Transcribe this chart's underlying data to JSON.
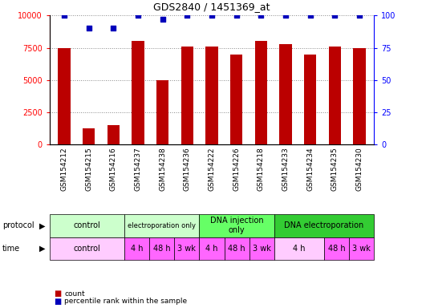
{
  "title": "GDS2840 / 1451369_at",
  "samples": [
    "GSM154212",
    "GSM154215",
    "GSM154216",
    "GSM154237",
    "GSM154238",
    "GSM154236",
    "GSM154222",
    "GSM154226",
    "GSM154218",
    "GSM154233",
    "GSM154234",
    "GSM154235",
    "GSM154230"
  ],
  "bar_values": [
    7500,
    1300,
    1500,
    8000,
    5000,
    7600,
    7600,
    7000,
    8000,
    7800,
    7000,
    7600,
    7500
  ],
  "percentile_values": [
    100,
    90,
    90,
    100,
    97,
    100,
    100,
    100,
    100,
    100,
    100,
    100,
    100
  ],
  "bar_color": "#bb0000",
  "dot_color": "#0000bb",
  "ylim_left": [
    0,
    10000
  ],
  "ylim_right": [
    0,
    100
  ],
  "yticks_left": [
    0,
    2500,
    5000,
    7500,
    10000
  ],
  "yticks_right": [
    0,
    25,
    50,
    75,
    100
  ],
  "grid_color": "#888888",
  "protocol_data": [
    {
      "label": "control",
      "span": [
        0,
        3
      ],
      "color": "#ccffcc",
      "fontsize": 7
    },
    {
      "label": "electroporation only",
      "span": [
        3,
        6
      ],
      "color": "#ccffcc",
      "fontsize": 6
    },
    {
      "label": "DNA injection\nonly",
      "span": [
        6,
        9
      ],
      "color": "#66ff66",
      "fontsize": 7
    },
    {
      "label": "DNA electroporation",
      "span": [
        9,
        13
      ],
      "color": "#33cc33",
      "fontsize": 7
    }
  ],
  "time_data": [
    {
      "label": "control",
      "span": [
        0,
        3
      ],
      "color": "#ffccff"
    },
    {
      "label": "4 h",
      "span": [
        3,
        4
      ],
      "color": "#ff66ff"
    },
    {
      "label": "48 h",
      "span": [
        4,
        5
      ],
      "color": "#ff66ff"
    },
    {
      "label": "3 wk",
      "span": [
        5,
        6
      ],
      "color": "#ff66ff"
    },
    {
      "label": "4 h",
      "span": [
        6,
        7
      ],
      "color": "#ff66ff"
    },
    {
      "label": "48 h",
      "span": [
        7,
        8
      ],
      "color": "#ff66ff"
    },
    {
      "label": "3 wk",
      "span": [
        8,
        9
      ],
      "color": "#ff66ff"
    },
    {
      "label": "4 h",
      "span": [
        9,
        11
      ],
      "color": "#ffccff"
    },
    {
      "label": "48 h",
      "span": [
        11,
        12
      ],
      "color": "#ff66ff"
    },
    {
      "label": "3 wk",
      "span": [
        12,
        13
      ],
      "color": "#ff66ff"
    }
  ],
  "legend_count_color": "#bb0000",
  "legend_dot_color": "#0000bb"
}
